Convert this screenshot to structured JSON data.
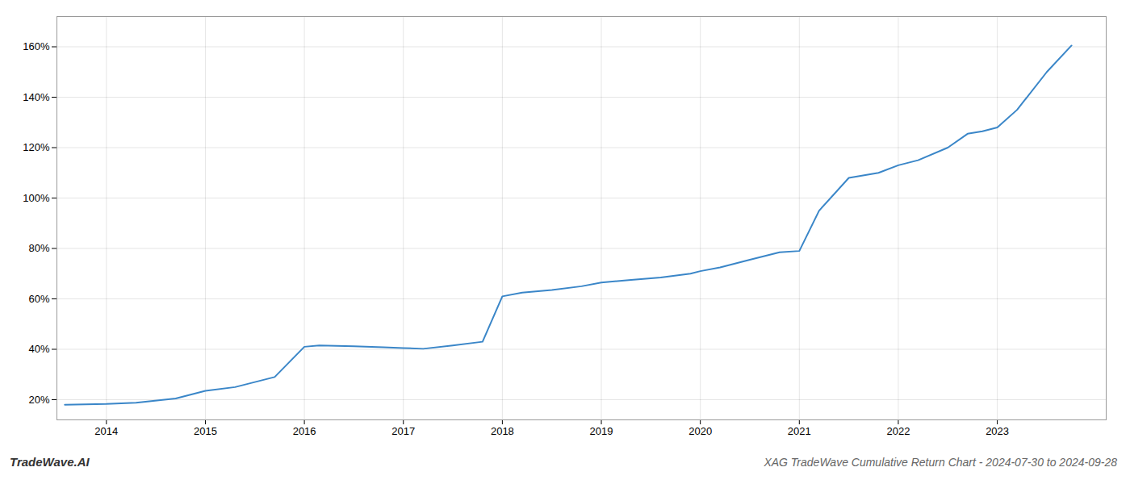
{
  "chart_data": {
    "type": "line",
    "title": "XAG TradeWave Cumulative Return Chart - 2024-07-30 to 2024-09-28",
    "annotations": [
      "TradeWave.AI"
    ],
    "x": [
      2013.58,
      2014.0,
      2014.3,
      2014.7,
      2015.0,
      2015.3,
      2015.7,
      2016.0,
      2016.15,
      2016.5,
      2016.8,
      2017.0,
      2017.2,
      2017.5,
      2017.8,
      2018.0,
      2018.2,
      2018.5,
      2018.8,
      2019.0,
      2019.3,
      2019.6,
      2019.9,
      2020.0,
      2020.2,
      2020.5,
      2020.8,
      2021.0,
      2021.2,
      2021.5,
      2021.8,
      2022.0,
      2022.2,
      2022.5,
      2022.7,
      2022.85,
      2023.0,
      2023.2,
      2023.5,
      2023.75
    ],
    "values": [
      18.0,
      18.3,
      18.8,
      20.5,
      23.5,
      25.0,
      29.0,
      41.0,
      41.5,
      41.2,
      40.8,
      40.5,
      40.2,
      41.5,
      43.0,
      61.0,
      62.5,
      63.5,
      65.0,
      66.5,
      67.5,
      68.5,
      70.0,
      71.0,
      72.5,
      75.5,
      78.5,
      79.0,
      95.0,
      108.0,
      110.0,
      113.0,
      115.0,
      120.0,
      125.5,
      126.5,
      128.0,
      135.0,
      150.0,
      160.5
    ],
    "color": "#3a86c8",
    "xlim": [
      2013.5,
      2024.1
    ],
    "xticks": [
      2014,
      2015,
      2016,
      2017,
      2018,
      2019,
      2020,
      2021,
      2022,
      2023
    ],
    "ylim": [
      12,
      172
    ],
    "yticks": [
      {
        "value": 20,
        "label": "20%"
      },
      {
        "value": 40,
        "label": "40%"
      },
      {
        "value": 60,
        "label": "60%"
      },
      {
        "value": 80,
        "label": "80%"
      },
      {
        "value": 100,
        "label": "100%"
      },
      {
        "value": 120,
        "label": "120%"
      },
      {
        "value": 140,
        "label": "140%"
      },
      {
        "value": 160,
        "label": "160%"
      }
    ],
    "grid": true
  }
}
